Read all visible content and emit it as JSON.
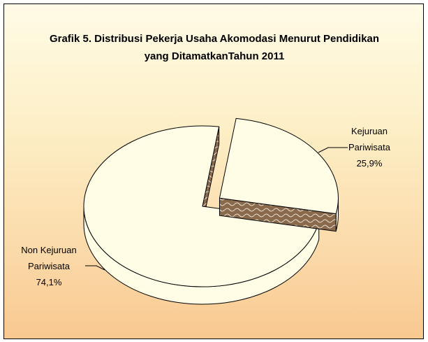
{
  "chart_data": {
    "type": "pie",
    "title": "Grafik 5. Distribusi Pekerja Usaha Akomodasi Menurut Pendidikan yang DitamatkanTahun 2011",
    "categories": [
      "Kejuruan Pariwisata",
      "Non Kejuruan Pariwisata"
    ],
    "values": [
      25.9,
      74.1
    ],
    "value_labels": [
      "25,9%",
      "74,1%"
    ],
    "colors": [
      "#fffde6",
      "#fffde6"
    ],
    "explode": [
      true,
      false
    ]
  }
}
